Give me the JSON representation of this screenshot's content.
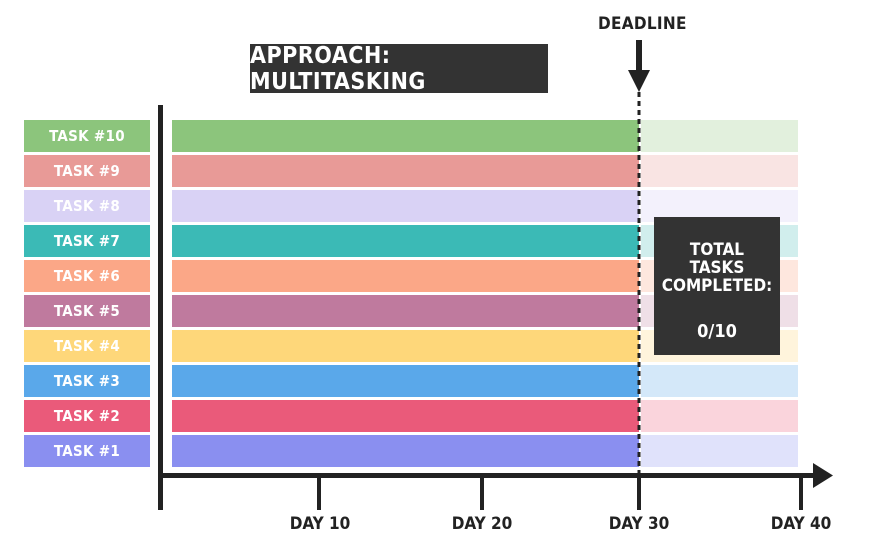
{
  "title": "APPROACH: MULTITASKING",
  "deadline_label": "DEADLINE",
  "tasks": [
    {
      "label": "TASK #10",
      "color": "#8cc57c",
      "ghost": "#e2f0dd"
    },
    {
      "label": "TASK #9",
      "color": "#e89a97",
      "ghost": "#f9e4e3"
    },
    {
      "label": "TASK #8",
      "color": "#d9d2f5",
      "ghost": "#f3f1fc"
    },
    {
      "label": "TASK #7",
      "color": "#3bbab6",
      "ghost": "#d1eeed"
    },
    {
      "label": "TASK #6",
      "color": "#fba787",
      "ghost": "#fee7de"
    },
    {
      "label": "TASK #5",
      "color": "#bf7a9e",
      "ghost": "#efdfe7"
    },
    {
      "label": "TASK #4",
      "color": "#fed77a",
      "ghost": "#fff4dc"
    },
    {
      "label": "TASK #3",
      "color": "#5aa8ea",
      "ghost": "#d4e8f9"
    },
    {
      "label": "TASK #2",
      "color": "#ea5a7a",
      "ghost": "#fad4dc"
    },
    {
      "label": "TASK #1",
      "color": "#8a8ff0",
      "ghost": "#e0e2fb"
    }
  ],
  "summary": {
    "line1": "TOTAL",
    "line2": "TASKS",
    "line3": "COMPLETED:",
    "count": "0/10"
  },
  "axis_labels": [
    "DAY 10",
    "DAY 20",
    "DAY 30",
    "DAY 40"
  ],
  "accent": "#333333"
}
